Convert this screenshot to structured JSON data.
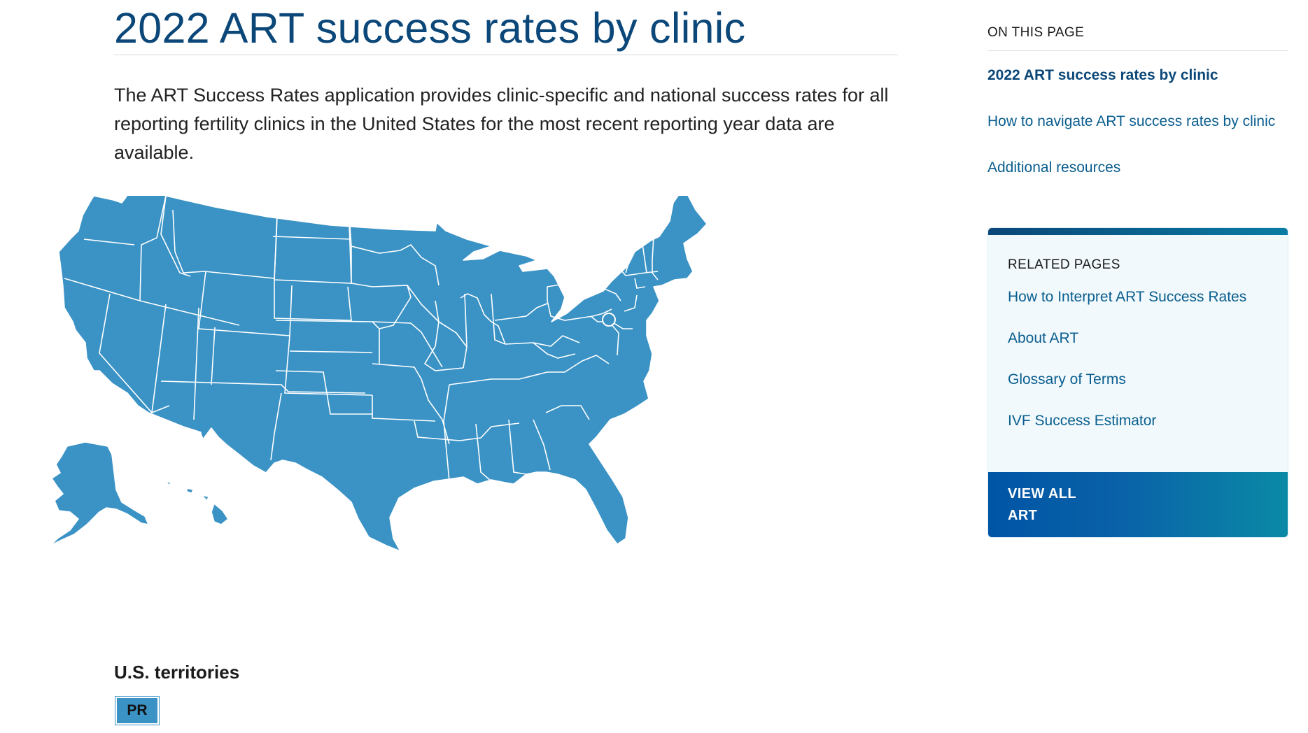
{
  "page": {
    "title": "2022 ART success rates by clinic",
    "intro": "The ART Success Rates application provides clinic-specific and national success rates for all reporting fertility clinics in the United States for the most recent reporting year data are available."
  },
  "map": {
    "label": "United States map of clinics by state",
    "fill_color": "#3a92c5",
    "border_color": "#ffffff"
  },
  "territories": {
    "heading": "U.S. territories",
    "buttons": [
      {
        "label": "PR"
      }
    ]
  },
  "on_this_page": {
    "heading": "ON THIS PAGE",
    "links": [
      {
        "label": "2022 ART success rates by clinic",
        "active": true
      },
      {
        "label": "How to navigate ART success rates by clinic",
        "active": false
      },
      {
        "label": "Additional resources",
        "active": false
      }
    ]
  },
  "related_pages": {
    "heading": "RELATED PAGES",
    "links": [
      {
        "label": "How to Interpret ART Success Rates"
      },
      {
        "label": "About ART"
      },
      {
        "label": "Glossary of Terms"
      },
      {
        "label": "IVF Success Estimator"
      }
    ],
    "view_all_line1": "VIEW ALL",
    "view_all_line2": "ART"
  },
  "colors": {
    "title": "#0b4778",
    "link": "#0a5e8f",
    "map": "#3a92c5",
    "related_bg": "#f1f9fc"
  }
}
